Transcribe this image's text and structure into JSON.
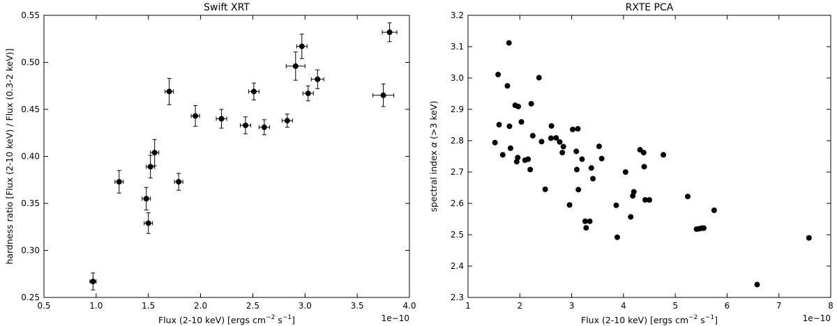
{
  "chart_data": [
    {
      "type": "scatter",
      "title": "Swift XRT",
      "xlabel_parts": [
        "Flux (2-10 keV) [ergs cm",
        "−2",
        " s",
        "−1",
        "]"
      ],
      "ylabel": "hardness ratio [Flux (2-10 keV) / Flux (0.3-2 keV)]",
      "xlim": [
        0.5,
        4.0
      ],
      "ylim": [
        0.25,
        0.55
      ],
      "xticks": [
        "0.5",
        "1.0",
        "1.5",
        "2.0",
        "2.5",
        "3.0",
        "3.5",
        "4.0"
      ],
      "yticks": [
        "0.25",
        "0.30",
        "0.35",
        "0.40",
        "0.45",
        "0.50",
        "0.55"
      ],
      "x_offset_label": "1e−10",
      "points": [
        {
          "x": 0.97,
          "y": 0.267,
          "xerr": 0.03,
          "yerr": 0.009
        },
        {
          "x": 1.22,
          "y": 0.373,
          "xerr": 0.04,
          "yerr": 0.012
        },
        {
          "x": 1.48,
          "y": 0.355,
          "xerr": 0.04,
          "yerr": 0.012
        },
        {
          "x": 1.5,
          "y": 0.329,
          "xerr": 0.04,
          "yerr": 0.011
        },
        {
          "x": 1.52,
          "y": 0.389,
          "xerr": 0.04,
          "yerr": 0.012
        },
        {
          "x": 1.56,
          "y": 0.404,
          "xerr": 0.04,
          "yerr": 0.014
        },
        {
          "x": 1.7,
          "y": 0.469,
          "xerr": 0.04,
          "yerr": 0.014
        },
        {
          "x": 1.79,
          "y": 0.373,
          "xerr": 0.04,
          "yerr": 0.009
        },
        {
          "x": 1.95,
          "y": 0.443,
          "xerr": 0.04,
          "yerr": 0.011
        },
        {
          "x": 2.2,
          "y": 0.44,
          "xerr": 0.05,
          "yerr": 0.01
        },
        {
          "x": 2.43,
          "y": 0.433,
          "xerr": 0.05,
          "yerr": 0.009
        },
        {
          "x": 2.51,
          "y": 0.469,
          "xerr": 0.05,
          "yerr": 0.009
        },
        {
          "x": 2.61,
          "y": 0.431,
          "xerr": 0.05,
          "yerr": 0.008
        },
        {
          "x": 2.83,
          "y": 0.438,
          "xerr": 0.05,
          "yerr": 0.007
        },
        {
          "x": 2.91,
          "y": 0.496,
          "xerr": 0.09,
          "yerr": 0.015
        },
        {
          "x": 2.97,
          "y": 0.517,
          "xerr": 0.05,
          "yerr": 0.013
        },
        {
          "x": 3.03,
          "y": 0.467,
          "xerr": 0.05,
          "yerr": 0.008
        },
        {
          "x": 3.12,
          "y": 0.482,
          "xerr": 0.06,
          "yerr": 0.01
        },
        {
          "x": 3.75,
          "y": 0.465,
          "xerr": 0.1,
          "yerr": 0.012
        },
        {
          "x": 3.81,
          "y": 0.532,
          "xerr": 0.07,
          "yerr": 0.01
        }
      ]
    },
    {
      "type": "scatter",
      "title": "RXTE PCA",
      "xlabel_parts": [
        "Flux (2-10 keV) [ergs cm",
        "−2",
        " s",
        "−1",
        "]"
      ],
      "ylabel_parts": [
        "spectral index ",
        "α",
        " (>3 keV)"
      ],
      "xlim": [
        1,
        8
      ],
      "ylim": [
        2.3,
        3.2
      ],
      "xticks": [
        "1",
        "2",
        "3",
        "4",
        "5",
        "6",
        "7",
        "8"
      ],
      "yticks": [
        "2.3",
        "2.4",
        "2.5",
        "2.6",
        "2.7",
        "2.8",
        "2.9",
        "3.0",
        "3.1",
        "3.2"
      ],
      "x_offset_label": "1e−10",
      "points": [
        {
          "x": 1.52,
          "y": 2.794
        },
        {
          "x": 1.58,
          "y": 3.011
        },
        {
          "x": 1.6,
          "y": 2.851
        },
        {
          "x": 1.67,
          "y": 2.755
        },
        {
          "x": 1.76,
          "y": 2.975
        },
        {
          "x": 1.79,
          "y": 3.112
        },
        {
          "x": 1.8,
          "y": 2.846
        },
        {
          "x": 1.82,
          "y": 2.776
        },
        {
          "x": 1.91,
          "y": 2.913
        },
        {
          "x": 1.94,
          "y": 2.733
        },
        {
          "x": 1.96,
          "y": 2.746
        },
        {
          "x": 1.97,
          "y": 2.909
        },
        {
          "x": 2.03,
          "y": 2.86
        },
        {
          "x": 2.1,
          "y": 2.738
        },
        {
          "x": 2.16,
          "y": 2.741
        },
        {
          "x": 2.2,
          "y": 2.708
        },
        {
          "x": 2.22,
          "y": 2.918
        },
        {
          "x": 2.25,
          "y": 2.816
        },
        {
          "x": 2.37,
          "y": 3.001
        },
        {
          "x": 2.42,
          "y": 2.797
        },
        {
          "x": 2.49,
          "y": 2.645
        },
        {
          "x": 2.6,
          "y": 2.808
        },
        {
          "x": 2.61,
          "y": 2.847
        },
        {
          "x": 2.7,
          "y": 2.809
        },
        {
          "x": 2.77,
          "y": 2.796
        },
        {
          "x": 2.82,
          "y": 2.762
        },
        {
          "x": 2.84,
          "y": 2.781
        },
        {
          "x": 2.96,
          "y": 2.595
        },
        {
          "x": 3.02,
          "y": 2.836
        },
        {
          "x": 3.09,
          "y": 2.766
        },
        {
          "x": 3.1,
          "y": 2.708
        },
        {
          "x": 3.12,
          "y": 2.838
        },
        {
          "x": 3.13,
          "y": 2.644
        },
        {
          "x": 3.2,
          "y": 2.741
        },
        {
          "x": 3.26,
          "y": 2.543
        },
        {
          "x": 3.28,
          "y": 2.522
        },
        {
          "x": 3.35,
          "y": 2.543
        },
        {
          "x": 3.38,
          "y": 2.713
        },
        {
          "x": 3.41,
          "y": 2.679
        },
        {
          "x": 3.53,
          "y": 2.782
        },
        {
          "x": 3.58,
          "y": 2.743
        },
        {
          "x": 3.86,
          "y": 2.594
        },
        {
          "x": 3.88,
          "y": 2.492
        },
        {
          "x": 4.04,
          "y": 2.7
        },
        {
          "x": 4.14,
          "y": 2.557
        },
        {
          "x": 4.18,
          "y": 2.624
        },
        {
          "x": 4.2,
          "y": 2.637
        },
        {
          "x": 4.32,
          "y": 2.771
        },
        {
          "x": 4.39,
          "y": 2.762
        },
        {
          "x": 4.4,
          "y": 2.717
        },
        {
          "x": 4.42,
          "y": 2.611
        },
        {
          "x": 4.5,
          "y": 2.611
        },
        {
          "x": 4.77,
          "y": 2.755
        },
        {
          "x": 5.24,
          "y": 2.622
        },
        {
          "x": 5.41,
          "y": 2.518
        },
        {
          "x": 5.46,
          "y": 2.519
        },
        {
          "x": 5.51,
          "y": 2.521
        },
        {
          "x": 5.55,
          "y": 2.521
        },
        {
          "x": 5.75,
          "y": 2.578
        },
        {
          "x": 6.58,
          "y": 2.341
        },
        {
          "x": 7.58,
          "y": 2.49
        }
      ]
    }
  ]
}
